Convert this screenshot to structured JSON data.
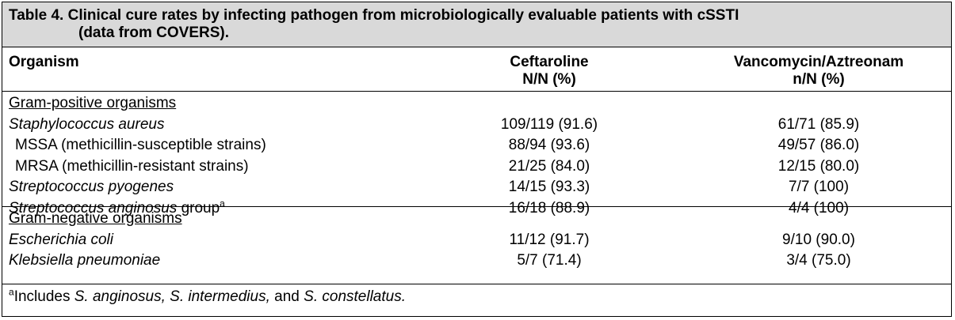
{
  "caption": {
    "line1": "Table 4. Clinical cure rates by infecting pathogen from microbiologically evaluable patients with cSSTI",
    "line2": "(data from COVERS)."
  },
  "header": {
    "organism": "Organism",
    "ceftaroline_line1": "Ceftaroline",
    "ceftaroline_line2": "N/N (%)",
    "vanco_line1": "Vancomycin/Aztreonam",
    "vanco_line2": "n/N (%)"
  },
  "gram_positive": {
    "title": "Gram-positive organisms",
    "rows": [
      {
        "organism": "Staphylococcus aureus",
        "ceftaroline": "109/119 (91.6)",
        "vanco": "61/71 (85.9)"
      },
      {
        "organism": "MSSA (methicillin-susceptible strains)",
        "ceftaroline": "88/94 (93.6)",
        "vanco": "49/57 (86.0)"
      },
      {
        "organism": "MRSA (methicillin-resistant strains)",
        "ceftaroline": "21/25 (84.0)",
        "vanco": "12/15 (80.0)"
      },
      {
        "organism": "Streptococcus pyogenes",
        "ceftaroline": "14/15 (93.3)",
        "vanco": "7/7 (100)"
      },
      {
        "organism": "Streptococcus anginosus",
        "organism_suffix": " group",
        "sup": "a",
        "ceftaroline": "16/18 (88.9)",
        "vanco": "4/4 (100)"
      }
    ]
  },
  "gram_negative": {
    "title": "Gram-negative organisms",
    "rows": [
      {
        "organism": "Escherichia coli",
        "ceftaroline": "11/12 (91.7)",
        "vanco": "9/10 (90.0)"
      },
      {
        "organism": "Klebsiella pneumoniae",
        "ceftaroline": "5/7 (71.4)",
        "vanco": "3/4 (75.0)"
      }
    ]
  },
  "footnote": {
    "sup": "a",
    "text_a": "Includes ",
    "species1": "S. anginosus, S. intermedius,",
    "text_b": " and ",
    "species2": "S. constellatus.",
    "text_c": ""
  }
}
